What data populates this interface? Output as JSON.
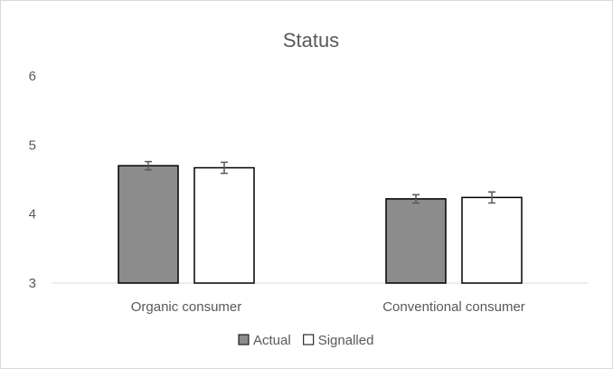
{
  "chart_data": {
    "type": "bar",
    "title": "Status",
    "xlabel": "",
    "ylabel": "",
    "ylim": [
      3,
      6
    ],
    "yticks": [
      3,
      4,
      5,
      6
    ],
    "grid": false,
    "legend_position": "bottom",
    "categories": [
      "Organic consumer",
      "Conventional consumer"
    ],
    "series": [
      {
        "name": "Actual",
        "values": [
          4.7,
          4.22
        ],
        "error": [
          0.06,
          0.06
        ],
        "color": "#8c8c8c"
      },
      {
        "name": "Signalled",
        "values": [
          4.67,
          4.24
        ],
        "error": [
          0.08,
          0.08
        ],
        "color": "#ffffff"
      }
    ]
  }
}
